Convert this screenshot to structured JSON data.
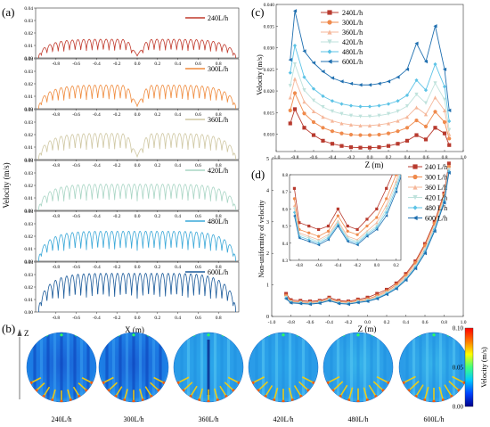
{
  "panel_labels": {
    "a": "(a)",
    "b": "(b)",
    "c": "(c)",
    "d": "(d)"
  },
  "colors": {
    "flow_colors": [
      "#c0392b",
      "#ef8a3c",
      "#cfc7a2",
      "#a8d5c4",
      "#3aa8d8",
      "#1a5a9a"
    ],
    "line_colors": [
      "#b83a2e",
      "#ef8a4c",
      "#f5b79a",
      "#bfe2dc",
      "#5cc3e6",
      "#1f6fb0"
    ],
    "colorbar_stops": [
      "#00008b",
      "#0044ff",
      "#00c8ff",
      "#40ff80",
      "#ffff00",
      "#ff7700",
      "#ff0000"
    ]
  },
  "chart_data": [
    {
      "id": "a",
      "type": "line",
      "ylabel": "Velocity (m/s)",
      "xlabel": "X (m)",
      "xlim": [
        -1,
        1
      ],
      "xticks": [
        "-0.8",
        "-0.6",
        "-0.4",
        "-0.2",
        "0.0",
        "0.2",
        "0.4",
        "0.6",
        "0.8"
      ],
      "subplots": [
        {
          "name": "240L/h",
          "ylim": [
            0,
            0.04
          ],
          "yticks": [
            "0.00",
            "0.01",
            "0.02",
            "0.03",
            "0.04"
          ],
          "peak": 0.015,
          "gap": true
        },
        {
          "name": "300L/h",
          "ylim": [
            0,
            0.04
          ],
          "yticks": [
            "0.00",
            "0.01",
            "0.02",
            "0.03",
            "0.04"
          ],
          "peak": 0.019,
          "gap": true
        },
        {
          "name": "360L/h",
          "ylim": [
            0,
            0.04
          ],
          "yticks": [
            "0.00",
            "0.01",
            "0.02",
            "0.03",
            "0.04"
          ],
          "peak": 0.021,
          "gap": true
        },
        {
          "name": "420L/h",
          "ylim": [
            0,
            0.04
          ],
          "yticks": [
            "0.00",
            "0.01",
            "0.02",
            "0.03",
            "0.04"
          ],
          "peak": 0.021,
          "gap": false
        },
        {
          "name": "480L/h",
          "ylim": [
            0,
            0.04
          ],
          "yticks": [
            "0.00",
            "0.01",
            "0.02",
            "0.03",
            "0.04"
          ],
          "peak": 0.024,
          "gap": false
        },
        {
          "name": "600L/h",
          "ylim": [
            0,
            0.04
          ],
          "yticks": [
            "0.00",
            "0.01",
            "0.02",
            "0.03",
            "0.04"
          ],
          "peak": 0.031,
          "gap": false
        }
      ]
    },
    {
      "id": "c",
      "type": "line",
      "xlabel": "Z (m)",
      "ylabel": "Velocity (m/s)",
      "xlim": [
        -1,
        1
      ],
      "ylim": [
        0.006,
        0.04
      ],
      "xticks": [
        "-1.0",
        "-0.8",
        "-0.6",
        "-0.4",
        "-0.2",
        "0.0",
        "0.2",
        "0.4",
        "0.6",
        "0.8",
        "1.0"
      ],
      "yticks": [
        "0.010",
        "0.015",
        "0.020",
        "0.025",
        "0.030",
        "0.035",
        "0.040"
      ],
      "legend_position": "top-left",
      "x": [
        -0.85,
        -0.8,
        -0.7,
        -0.6,
        -0.5,
        -0.4,
        -0.3,
        -0.2,
        -0.1,
        0,
        0.1,
        0.2,
        0.3,
        0.4,
        0.5,
        0.6,
        0.7,
        0.8,
        0.85
      ],
      "series": [
        {
          "name": "240L/h",
          "marker": "square",
          "values": [
            0.0125,
            0.0158,
            0.0115,
            0.0098,
            0.0085,
            0.0078,
            0.0073,
            0.007,
            0.0069,
            0.0069,
            0.007,
            0.0073,
            0.0078,
            0.0085,
            0.0098,
            0.0088,
            0.0115,
            0.0102,
            0.0075
          ]
        },
        {
          "name": "300L/h",
          "marker": "circle",
          "values": [
            0.0155,
            0.0195,
            0.0148,
            0.0128,
            0.0115,
            0.0107,
            0.0102,
            0.0099,
            0.0098,
            0.0098,
            0.0099,
            0.0102,
            0.0107,
            0.0115,
            0.0132,
            0.0118,
            0.0152,
            0.0128,
            0.009
          ]
        },
        {
          "name": "360L/h",
          "marker": "triangle",
          "values": [
            0.0185,
            0.0228,
            0.0175,
            0.0153,
            0.014,
            0.0131,
            0.0125,
            0.0122,
            0.012,
            0.012,
            0.0122,
            0.0125,
            0.0131,
            0.014,
            0.0162,
            0.0146,
            0.0185,
            0.0155,
            0.01
          ]
        },
        {
          "name": "420L/h",
          "marker": "triangle-down",
          "values": [
            0.0212,
            0.0262,
            0.0202,
            0.0178,
            0.0163,
            0.0153,
            0.0147,
            0.0143,
            0.0141,
            0.0141,
            0.0143,
            0.0147,
            0.0153,
            0.0165,
            0.0192,
            0.0172,
            0.0218,
            0.018,
            0.011
          ]
        },
        {
          "name": "480L/h",
          "marker": "diamond",
          "values": [
            0.0242,
            0.0305,
            0.0232,
            0.0205,
            0.0188,
            0.0177,
            0.017,
            0.0166,
            0.0164,
            0.0164,
            0.0166,
            0.017,
            0.0177,
            0.019,
            0.0225,
            0.0202,
            0.0262,
            0.021,
            0.013
          ]
        },
        {
          "name": "600L/h",
          "marker": "left-triangle",
          "values": [
            0.0272,
            0.0385,
            0.0292,
            0.0265,
            0.0245,
            0.023,
            0.0222,
            0.0217,
            0.0214,
            0.0214,
            0.0217,
            0.0222,
            0.0232,
            0.025,
            0.031,
            0.0268,
            0.035,
            0.025,
            0.0155
          ]
        }
      ]
    },
    {
      "id": "d",
      "type": "line",
      "xlabel": "Z (m)",
      "ylabel": "Non-uniformity of velocity",
      "xlim": [
        -1,
        1
      ],
      "ylim": [
        0,
        5
      ],
      "xticks": [
        "-1.0",
        "-0.8",
        "-0.6",
        "-0.4",
        "-0.2",
        "0.0",
        "0.2",
        "0.4",
        "0.6",
        "0.8",
        "1.0"
      ],
      "yticks": [
        "0",
        "1",
        "2",
        "3",
        "4",
        "5"
      ],
      "legend_position": "right",
      "x": [
        -0.85,
        -0.8,
        -0.7,
        -0.6,
        -0.5,
        -0.4,
        -0.3,
        -0.2,
        -0.1,
        0,
        0.1,
        0.2,
        0.3,
        0.4,
        0.5,
        0.6,
        0.7,
        0.8,
        0.85
      ],
      "series": [
        {
          "name": "240 L/h",
          "marker": "square",
          "values": [
            0.72,
            0.52,
            0.5,
            0.48,
            0.5,
            0.6,
            0.5,
            0.48,
            0.54,
            0.6,
            0.72,
            0.85,
            1.05,
            1.35,
            1.75,
            2.3,
            3.0,
            3.9,
            4.85
          ]
        },
        {
          "name": "300 L/h",
          "marker": "circle",
          "values": [
            0.66,
            0.48,
            0.46,
            0.44,
            0.47,
            0.56,
            0.47,
            0.45,
            0.5,
            0.55,
            0.66,
            0.8,
            1.0,
            1.3,
            1.7,
            2.25,
            2.95,
            3.85,
            4.75
          ]
        },
        {
          "name": "360 L/h",
          "marker": "triangle",
          "values": [
            0.62,
            0.46,
            0.44,
            0.42,
            0.45,
            0.53,
            0.44,
            0.42,
            0.47,
            0.52,
            0.62,
            0.76,
            0.95,
            1.24,
            1.62,
            2.15,
            2.85,
            3.75,
            4.7
          ]
        },
        {
          "name": "420 L/h",
          "marker": "triangle-down",
          "values": [
            0.6,
            0.45,
            0.43,
            0.41,
            0.44,
            0.52,
            0.43,
            0.41,
            0.46,
            0.5,
            0.6,
            0.74,
            0.92,
            1.2,
            1.58,
            2.1,
            2.8,
            3.7,
            4.65
          ]
        },
        {
          "name": "480 L/h",
          "marker": "diamond",
          "values": [
            0.58,
            0.44,
            0.42,
            0.4,
            0.43,
            0.51,
            0.42,
            0.4,
            0.45,
            0.49,
            0.58,
            0.72,
            0.9,
            1.18,
            1.55,
            2.05,
            2.75,
            3.65,
            4.6
          ]
        },
        {
          "name": "600 L/h",
          "marker": "left-triangle",
          "values": [
            0.56,
            0.43,
            0.41,
            0.39,
            0.42,
            0.5,
            0.41,
            0.39,
            0.44,
            0.48,
            0.56,
            0.7,
            0.88,
            1.15,
            1.52,
            2.0,
            2.7,
            3.6,
            4.55
          ]
        }
      ],
      "inset": {
        "xlim": [
          -0.9,
          0.25
        ],
        "ylim": [
          0.3,
          0.8
        ],
        "xticks": [
          "-0.8",
          "-0.6",
          "-0.4",
          "-0.2",
          "0.0",
          "0.2"
        ],
        "yticks": [
          "0.3",
          "0.4",
          "0.5",
          "0.6",
          "0.7",
          "0.8"
        ]
      }
    },
    {
      "id": "b",
      "type": "heatmap",
      "colorbar_label": "Velocity (m/s)",
      "colorbar_ticks": [
        "0.00",
        "0.05",
        "0.10"
      ],
      "axis_label": "Z",
      "xlabel": "X (m)",
      "panels": [
        "240L/h",
        "300L/h",
        "360L/h",
        "420L/h",
        "480L/h",
        "600L/h"
      ]
    }
  ]
}
